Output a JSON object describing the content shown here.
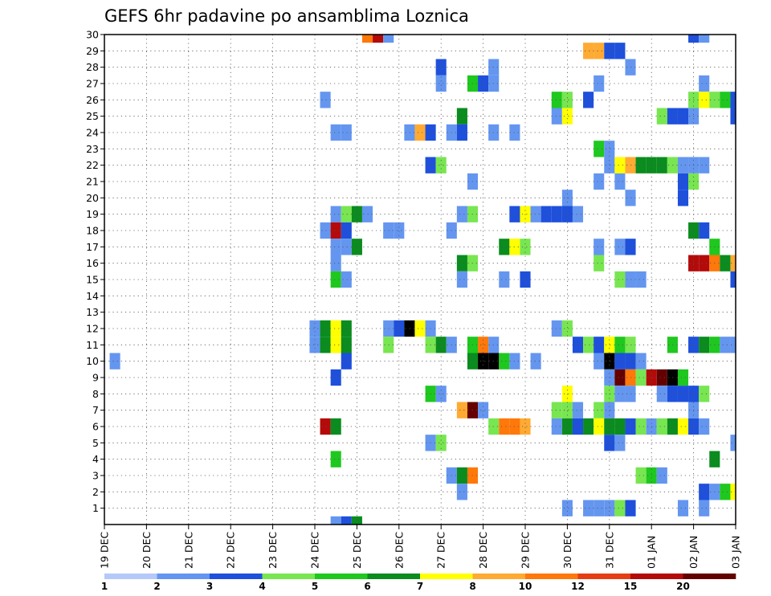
{
  "chart_data": {
    "type": "heatmap",
    "title": "GEFS 6hr padavine po ansamblima Loznica",
    "xlabel": "",
    "ylabel": "",
    "y_ticks": [
      "1",
      "2",
      "3",
      "4",
      "5",
      "6",
      "7",
      "8",
      "9",
      "10",
      "11",
      "12",
      "13",
      "14",
      "15",
      "16",
      "17",
      "18",
      "19",
      "20",
      "21",
      "22",
      "23",
      "24",
      "25",
      "26",
      "27",
      "28",
      "29",
      "30"
    ],
    "x_ticks": [
      "19 DEC",
      "20 DEC",
      "21 DEC",
      "22 DEC",
      "23 DEC",
      "24 DEC",
      "25 DEC",
      "26 DEC",
      "27 DEC",
      "28 DEC",
      "29 DEC",
      "30 DEC",
      "31 DEC",
      "01 JAN",
      "02 JAN",
      "03 JAN"
    ],
    "xlim_days": [
      0,
      15
    ],
    "ylim_members": [
      0,
      30
    ],
    "grid": true,
    "legend": "bottom colorbar",
    "colorbar": {
      "levels": [
        "1",
        "2",
        "3",
        "4",
        "5",
        "6",
        "7",
        "8",
        "10",
        "12",
        "15",
        "20"
      ],
      "colors": [
        "#b4c8fa",
        "#6496f0",
        "#1e50dc",
        "#78e650",
        "#1ec81e",
        "#0a8c1e",
        "#ffff00",
        "#ffaa32",
        "#ff780a",
        "#e63c14",
        "#b40a0a",
        "#640000"
      ]
    },
    "cells": [
      [
        6.25,
        30,
        8
      ],
      [
        6.5,
        30,
        10
      ],
      [
        6.75,
        30,
        1
      ],
      [
        14,
        30,
        2
      ],
      [
        14.25,
        30,
        1
      ],
      [
        11.5,
        29,
        7
      ],
      [
        11.75,
        29,
        7
      ],
      [
        12,
        29,
        2
      ],
      [
        12.25,
        29,
        2
      ],
      [
        8,
        28,
        2
      ],
      [
        9.25,
        28,
        1
      ],
      [
        12.5,
        28,
        1
      ],
      [
        8,
        27,
        1
      ],
      [
        8.75,
        27,
        4
      ],
      [
        9,
        27,
        2
      ],
      [
        9.25,
        27,
        1
      ],
      [
        11.75,
        27,
        1
      ],
      [
        14.25,
        27,
        1
      ],
      [
        5.25,
        26,
        1
      ],
      [
        10.75,
        26,
        4
      ],
      [
        11,
        26,
        3
      ],
      [
        11.5,
        26,
        2
      ],
      [
        14,
        26,
        3
      ],
      [
        14.25,
        26,
        6
      ],
      [
        14.5,
        26,
        3
      ],
      [
        14.75,
        26,
        4
      ],
      [
        15,
        26,
        2
      ],
      [
        8.5,
        25,
        5
      ],
      [
        10.75,
        25,
        1
      ],
      [
        11,
        25,
        6
      ],
      [
        13.25,
        25,
        3
      ],
      [
        13.5,
        25,
        2
      ],
      [
        13.75,
        25,
        2
      ],
      [
        14,
        25,
        1
      ],
      [
        15,
        25,
        2
      ],
      [
        5.5,
        24,
        1
      ],
      [
        5.75,
        24,
        1
      ],
      [
        7.25,
        24,
        1
      ],
      [
        7.5,
        24,
        7
      ],
      [
        7.75,
        24,
        2
      ],
      [
        8.25,
        24,
        1
      ],
      [
        8.5,
        24,
        2
      ],
      [
        9.25,
        24,
        1
      ],
      [
        9.75,
        24,
        1
      ],
      [
        11.75,
        23,
        4
      ],
      [
        12,
        23,
        1
      ],
      [
        7.75,
        22,
        2
      ],
      [
        8,
        22,
        3
      ],
      [
        12,
        22,
        1
      ],
      [
        12.25,
        22,
        6
      ],
      [
        12.5,
        22,
        7
      ],
      [
        12.75,
        22,
        5
      ],
      [
        13,
        22,
        5
      ],
      [
        13.25,
        22,
        5
      ],
      [
        13.5,
        22,
        3
      ],
      [
        13.75,
        22,
        1
      ],
      [
        14,
        22,
        1
      ],
      [
        14.25,
        22,
        1
      ],
      [
        8.75,
        21,
        1
      ],
      [
        11.75,
        21,
        1
      ],
      [
        12.25,
        21,
        1
      ],
      [
        13.75,
        21,
        2
      ],
      [
        14,
        21,
        3
      ],
      [
        11,
        20,
        1
      ],
      [
        12.5,
        20,
        1
      ],
      [
        13.75,
        20,
        2
      ],
      [
        5.5,
        19,
        1
      ],
      [
        5.75,
        19,
        3
      ],
      [
        6,
        19,
        5
      ],
      [
        6.25,
        19,
        1
      ],
      [
        8.5,
        19,
        1
      ],
      [
        8.75,
        19,
        3
      ],
      [
        9.75,
        19,
        2
      ],
      [
        10,
        19,
        6
      ],
      [
        10.25,
        19,
        1
      ],
      [
        10.5,
        19,
        2
      ],
      [
        10.75,
        19,
        2
      ],
      [
        11,
        19,
        2
      ],
      [
        11.25,
        19,
        1
      ],
      [
        5.25,
        18,
        1
      ],
      [
        5.5,
        18,
        10
      ],
      [
        5.75,
        18,
        2
      ],
      [
        6.75,
        18,
        1
      ],
      [
        7,
        18,
        1
      ],
      [
        8.25,
        18,
        1
      ],
      [
        14,
        18,
        5
      ],
      [
        14.25,
        18,
        2
      ],
      [
        5.5,
        17,
        1
      ],
      [
        5.75,
        17,
        1
      ],
      [
        6,
        17,
        5
      ],
      [
        9.5,
        17,
        5
      ],
      [
        9.75,
        17,
        6
      ],
      [
        10,
        17,
        3
      ],
      [
        11.75,
        17,
        1
      ],
      [
        12.25,
        17,
        1
      ],
      [
        12.5,
        17,
        2
      ],
      [
        14.5,
        17,
        4
      ],
      [
        5.5,
        16,
        1
      ],
      [
        8.5,
        16,
        5
      ],
      [
        8.75,
        16,
        3
      ],
      [
        11.75,
        16,
        3
      ],
      [
        14,
        16,
        10
      ],
      [
        14.25,
        16,
        10
      ],
      [
        14.5,
        16,
        8
      ],
      [
        14.75,
        16,
        5
      ],
      [
        15,
        16,
        7
      ],
      [
        5.5,
        15,
        4
      ],
      [
        5.75,
        15,
        1
      ],
      [
        8.5,
        15,
        1
      ],
      [
        9.5,
        15,
        1
      ],
      [
        10,
        15,
        2
      ],
      [
        12.25,
        15,
        3
      ],
      [
        12.5,
        15,
        1
      ],
      [
        12.75,
        15,
        1
      ],
      [
        15,
        15,
        2
      ],
      [
        5,
        12,
        1
      ],
      [
        5.25,
        12,
        5
      ],
      [
        5.5,
        12,
        6
      ],
      [
        5.75,
        12,
        5
      ],
      [
        6.75,
        12,
        1
      ],
      [
        7,
        12,
        2
      ],
      [
        7.25,
        12,
        13
      ],
      [
        7.5,
        12,
        6
      ],
      [
        7.75,
        12,
        1
      ],
      [
        10.75,
        12,
        1
      ],
      [
        11,
        12,
        3
      ],
      [
        5,
        11,
        1
      ],
      [
        5.25,
        11,
        5
      ],
      [
        5.5,
        11,
        6
      ],
      [
        5.75,
        11,
        5
      ],
      [
        6.75,
        11,
        3
      ],
      [
        7.75,
        11,
        3
      ],
      [
        8,
        11,
        5
      ],
      [
        8.25,
        11,
        1
      ],
      [
        8.75,
        11,
        4
      ],
      [
        9,
        11,
        8
      ],
      [
        9.25,
        11,
        1
      ],
      [
        11.25,
        11,
        2
      ],
      [
        11.5,
        11,
        3
      ],
      [
        11.75,
        11,
        2
      ],
      [
        12,
        11,
        6
      ],
      [
        12.25,
        11,
        4
      ],
      [
        12.5,
        11,
        3
      ],
      [
        13.5,
        11,
        4
      ],
      [
        14,
        11,
        2
      ],
      [
        14.25,
        11,
        5
      ],
      [
        14.5,
        11,
        4
      ],
      [
        14.75,
        11,
        1
      ],
      [
        15,
        11,
        1
      ],
      [
        0.25,
        10,
        1
      ],
      [
        5.75,
        10,
        2
      ],
      [
        8.75,
        10,
        5
      ],
      [
        9,
        10,
        12
      ],
      [
        9.25,
        10,
        12
      ],
      [
        9.5,
        10,
        4
      ],
      [
        9.75,
        10,
        1
      ],
      [
        10.25,
        10,
        1
      ],
      [
        11.75,
        10,
        1
      ],
      [
        12,
        10,
        12
      ],
      [
        12.25,
        10,
        2
      ],
      [
        12.5,
        10,
        2
      ],
      [
        12.75,
        10,
        1
      ],
      [
        5.5,
        9,
        2
      ],
      [
        12,
        9,
        1
      ],
      [
        12.25,
        9,
        11
      ],
      [
        12.5,
        9,
        8
      ],
      [
        12.75,
        9,
        3
      ],
      [
        13,
        9,
        10
      ],
      [
        13.25,
        9,
        11
      ],
      [
        13.5,
        9,
        12
      ],
      [
        13.75,
        9,
        4
      ],
      [
        7.75,
        8,
        4
      ],
      [
        8,
        8,
        1
      ],
      [
        11,
        8,
        6
      ],
      [
        12,
        8,
        3
      ],
      [
        12.25,
        8,
        1
      ],
      [
        12.5,
        8,
        1
      ],
      [
        13.25,
        8,
        1
      ],
      [
        13.5,
        8,
        2
      ],
      [
        13.75,
        8,
        2
      ],
      [
        14,
        8,
        2
      ],
      [
        14.25,
        8,
        3
      ],
      [
        8.5,
        7,
        7
      ],
      [
        8.75,
        7,
        11
      ],
      [
        9,
        7,
        1
      ],
      [
        10.75,
        7,
        3
      ],
      [
        11,
        7,
        3
      ],
      [
        11.25,
        7,
        1
      ],
      [
        11.75,
        7,
        3
      ],
      [
        12,
        7,
        1
      ],
      [
        14,
        7,
        1
      ],
      [
        5.25,
        6,
        10
      ],
      [
        5.5,
        6,
        5
      ],
      [
        9.25,
        6,
        3
      ],
      [
        9.5,
        6,
        8
      ],
      [
        9.75,
        6,
        8
      ],
      [
        10,
        6,
        7
      ],
      [
        10.75,
        6,
        1
      ],
      [
        11,
        6,
        5
      ],
      [
        11.25,
        6,
        2
      ],
      [
        11.5,
        6,
        5
      ],
      [
        11.75,
        6,
        6
      ],
      [
        12,
        6,
        5
      ],
      [
        12.25,
        6,
        5
      ],
      [
        12.5,
        6,
        2
      ],
      [
        12.75,
        6,
        3
      ],
      [
        13,
        6,
        1
      ],
      [
        13.25,
        6,
        3
      ],
      [
        13.5,
        6,
        5
      ],
      [
        13.75,
        6,
        6
      ],
      [
        14,
        6,
        2
      ],
      [
        14.25,
        6,
        1
      ],
      [
        7.75,
        5,
        1
      ],
      [
        8,
        5,
        3
      ],
      [
        12,
        5,
        2
      ],
      [
        12.25,
        5,
        1
      ],
      [
        15,
        5,
        1
      ],
      [
        5.5,
        4,
        4
      ],
      [
        14.5,
        4,
        5
      ],
      [
        8.25,
        3,
        1
      ],
      [
        8.5,
        3,
        5
      ],
      [
        8.75,
        3,
        8
      ],
      [
        12.75,
        3,
        3
      ],
      [
        13,
        3,
        4
      ],
      [
        13.25,
        3,
        1
      ],
      [
        8.5,
        2,
        1
      ],
      [
        14.25,
        2,
        2
      ],
      [
        14.5,
        2,
        1
      ],
      [
        14.75,
        2,
        4
      ],
      [
        15,
        2,
        6
      ],
      [
        11,
        1,
        1
      ],
      [
        11.5,
        1,
        1
      ],
      [
        11.75,
        1,
        1
      ],
      [
        12,
        1,
        1
      ],
      [
        12.25,
        1,
        3
      ],
      [
        12.5,
        1,
        2
      ],
      [
        13.75,
        1,
        1
      ],
      [
        14.25,
        1,
        1
      ],
      [
        5.5,
        0,
        1
      ],
      [
        5.75,
        0,
        2
      ],
      [
        6,
        0,
        5
      ]
    ]
  }
}
